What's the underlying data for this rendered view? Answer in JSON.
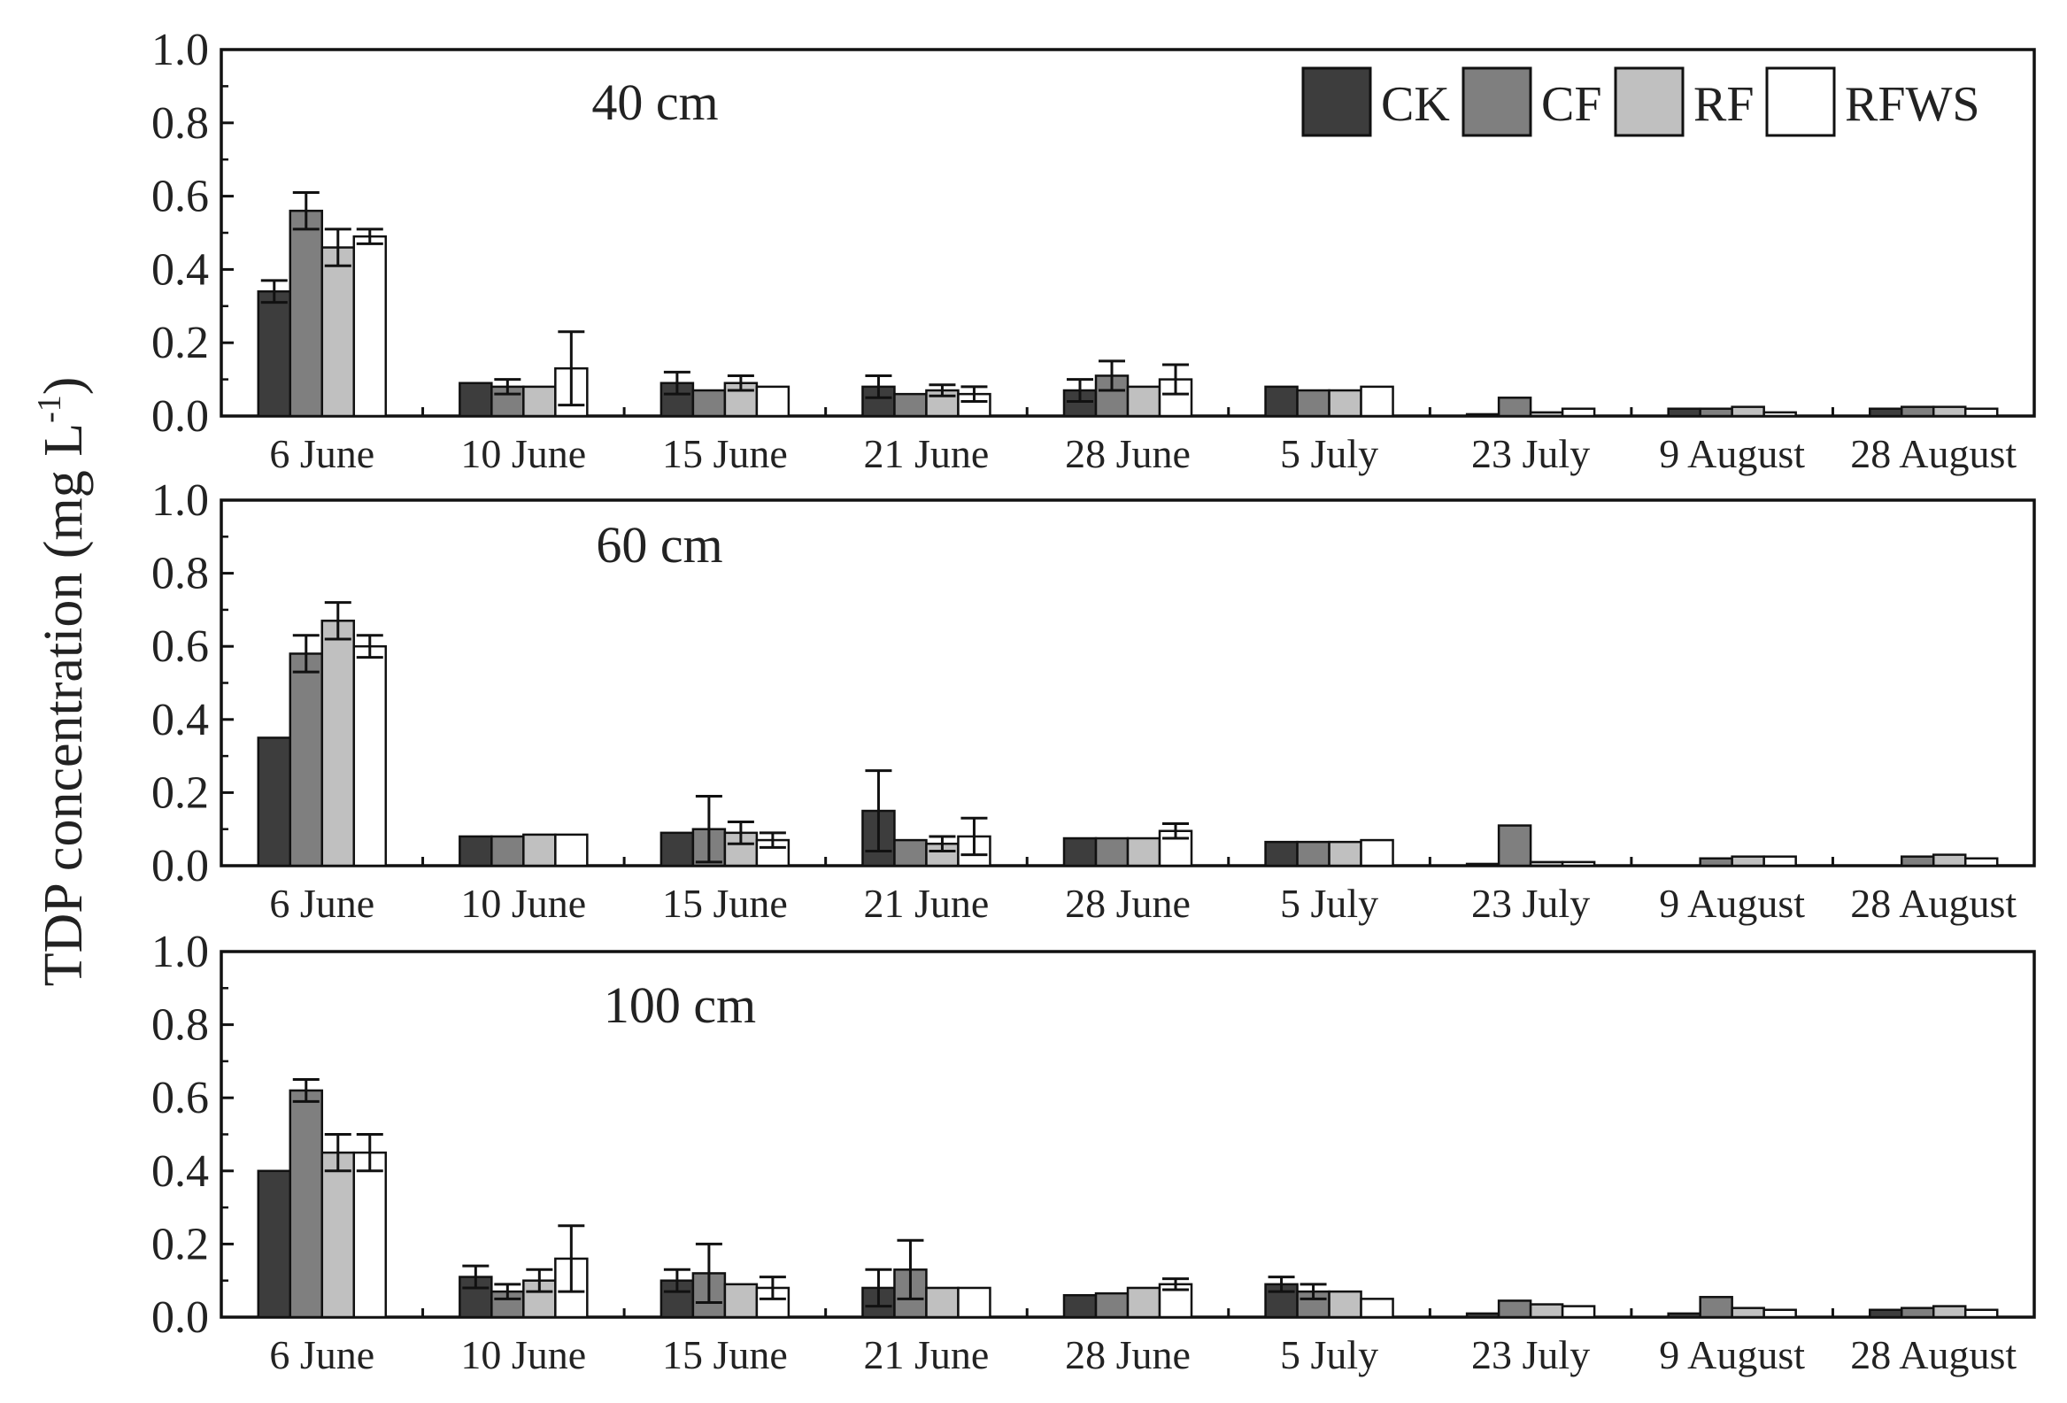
{
  "chart_data": {
    "type": "bar",
    "ylabel_main": "TDP concentration (mg L",
    "ylabel_exp": "-1",
    "ylabel_close": ")",
    "ylim": [
      0,
      1.0
    ],
    "yticks": [
      "0.0",
      "0.2",
      "0.4",
      "0.6",
      "0.8",
      "1.0"
    ],
    "categories": [
      "6 June",
      "10 June",
      "15 June",
      "21 June",
      "28 June",
      "5 July",
      "23 July",
      "9 August",
      "28 August"
    ],
    "legend": [
      {
        "name": "CK",
        "color": "#3d3d3d"
      },
      {
        "name": "CF",
        "color": "#7f7f7f"
      },
      {
        "name": "RF",
        "color": "#c0c0c0"
      },
      {
        "name": "RFWS",
        "color": "#ffffff"
      }
    ],
    "panels": [
      {
        "label": "40 cm",
        "series": [
          {
            "name": "CK",
            "values": [
              0.34,
              0.09,
              0.09,
              0.08,
              0.07,
              0.08,
              0.005,
              0.02,
              0.02
            ],
            "errors": [
              0.03,
              0.0,
              0.03,
              0.03,
              0.03,
              0.0,
              0.0,
              0.0,
              0.0
            ]
          },
          {
            "name": "CF",
            "values": [
              0.56,
              0.08,
              0.07,
              0.06,
              0.11,
              0.07,
              0.05,
              0.02,
              0.025
            ],
            "errors": [
              0.05,
              0.02,
              0.0,
              0.0,
              0.04,
              0.0,
              0.0,
              0.0,
              0.0
            ]
          },
          {
            "name": "RF",
            "values": [
              0.46,
              0.08,
              0.09,
              0.07,
              0.08,
              0.07,
              0.01,
              0.025,
              0.025
            ],
            "errors": [
              0.05,
              0.0,
              0.02,
              0.015,
              0.0,
              0.0,
              0.0,
              0.0,
              0.0
            ]
          },
          {
            "name": "RFWS",
            "values": [
              0.49,
              0.13,
              0.08,
              0.06,
              0.1,
              0.08,
              0.02,
              0.01,
              0.02
            ],
            "errors": [
              0.02,
              0.1,
              0.0,
              0.02,
              0.04,
              0.0,
              0.0,
              0.0,
              0.0
            ]
          }
        ]
      },
      {
        "label": "60 cm",
        "series": [
          {
            "name": "CK",
            "values": [
              0.35,
              0.08,
              0.09,
              0.15,
              0.075,
              0.065,
              0.005,
              0.0,
              0.0
            ],
            "errors": [
              0.0,
              0.0,
              0.0,
              0.11,
              0.0,
              0.0,
              0.0,
              0.0,
              0.0
            ]
          },
          {
            "name": "CF",
            "values": [
              0.58,
              0.08,
              0.1,
              0.07,
              0.075,
              0.065,
              0.11,
              0.02,
              0.025
            ],
            "errors": [
              0.05,
              0.0,
              0.09,
              0.0,
              0.0,
              0.0,
              0.0,
              0.0,
              0.0
            ]
          },
          {
            "name": "RF",
            "values": [
              0.67,
              0.085,
              0.09,
              0.06,
              0.075,
              0.065,
              0.01,
              0.025,
              0.03
            ],
            "errors": [
              0.05,
              0.0,
              0.03,
              0.02,
              0.0,
              0.0,
              0.0,
              0.0,
              0.0
            ]
          },
          {
            "name": "RFWS",
            "values": [
              0.6,
              0.085,
              0.07,
              0.08,
              0.095,
              0.07,
              0.01,
              0.025,
              0.02
            ],
            "errors": [
              0.03,
              0.0,
              0.02,
              0.05,
              0.02,
              0.0,
              0.0,
              0.0,
              0.0
            ]
          }
        ]
      },
      {
        "label": "100 cm",
        "series": [
          {
            "name": "CK",
            "values": [
              0.4,
              0.11,
              0.1,
              0.08,
              0.06,
              0.09,
              0.01,
              0.01,
              0.02
            ],
            "errors": [
              0.0,
              0.03,
              0.03,
              0.05,
              0.0,
              0.02,
              0.0,
              0.0,
              0.0
            ]
          },
          {
            "name": "CF",
            "values": [
              0.62,
              0.07,
              0.12,
              0.13,
              0.065,
              0.07,
              0.045,
              0.055,
              0.025
            ],
            "errors": [
              0.03,
              0.02,
              0.08,
              0.08,
              0.0,
              0.02,
              0.0,
              0.0,
              0.0
            ]
          },
          {
            "name": "RF",
            "values": [
              0.45,
              0.1,
              0.09,
              0.08,
              0.08,
              0.07,
              0.035,
              0.025,
              0.03
            ],
            "errors": [
              0.05,
              0.03,
              0.0,
              0.0,
              0.0,
              0.0,
              0.0,
              0.0,
              0.0
            ]
          },
          {
            "name": "RFWS",
            "values": [
              0.45,
              0.16,
              0.08,
              0.08,
              0.09,
              0.05,
              0.03,
              0.02,
              0.02
            ],
            "errors": [
              0.05,
              0.09,
              0.03,
              0.0,
              0.015,
              0.0,
              0.0,
              0.0,
              0.0
            ]
          }
        ]
      }
    ]
  }
}
